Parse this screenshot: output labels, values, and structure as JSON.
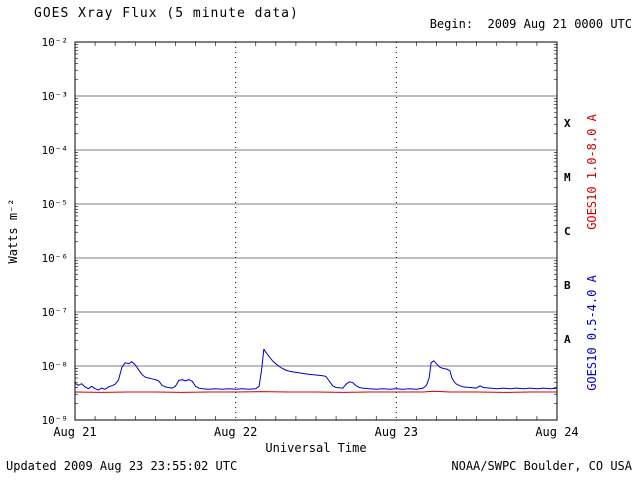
{
  "header": {
    "title": "GOES Xray Flux (5 minute data)",
    "begin": "Begin:  2009 Aug 21 0000 UTC"
  },
  "footer": {
    "updated": "Updated 2009 Aug 23 23:55:02 UTC",
    "credit": "NOAA/SWPC Boulder, CO USA"
  },
  "axes": {
    "ylabel": "Watts m⁻²",
    "xlabel": "Universal Time"
  },
  "right_labels": {
    "long_channel": "GOES10 1.0-8.0 A",
    "short_channel": "GOES10 0.5-4.0 A"
  },
  "colors": {
    "long_channel": "#d00000",
    "short_channel": "#0000c8",
    "axis": "#000000",
    "background": "#ffffff"
  },
  "chart_data": {
    "type": "line",
    "title": "GOES Xray Flux (5 minute data)",
    "xlabel": "Universal Time",
    "ylabel": "Watts m⁻²",
    "y_scale": "log",
    "y_log_range": [
      -2,
      -9
    ],
    "y_ticks": [
      {
        "exp": -2,
        "label": "10⁻²"
      },
      {
        "exp": -3,
        "label": "10⁻³"
      },
      {
        "exp": -4,
        "label": "10⁻⁴"
      },
      {
        "exp": -5,
        "label": "10⁻⁵"
      },
      {
        "exp": -6,
        "label": "10⁻⁶"
      },
      {
        "exp": -7,
        "label": "10⁻⁷"
      },
      {
        "exp": -8,
        "label": "10⁻⁸"
      },
      {
        "exp": -9,
        "label": "10⁻⁹"
      }
    ],
    "flare_classes": [
      {
        "label": "X",
        "log_center": -3.5
      },
      {
        "label": "M",
        "log_center": -4.5
      },
      {
        "label": "C",
        "log_center": -5.5
      },
      {
        "label": "B",
        "log_center": -6.5
      },
      {
        "label": "A",
        "log_center": -7.5
      }
    ],
    "x_start": "2009 Aug 21 0000 UTC",
    "x_range_hours": [
      0,
      72
    ],
    "x_minor_step": 3,
    "x_tick_hours": [
      0,
      24,
      48,
      72
    ],
    "x_tick_labels": [
      "Aug 21",
      "Aug 22",
      "Aug 23",
      "Aug 24"
    ],
    "series": [
      {
        "id": "long",
        "name": "GOES10 1.0-8.0 A",
        "color": "#d00000",
        "points": [
          [
            0,
            3.3e-09
          ],
          [
            4,
            3.25e-09
          ],
          [
            8,
            3.3e-09
          ],
          [
            12,
            3.3e-09
          ],
          [
            16,
            3.25e-09
          ],
          [
            20,
            3.3e-09
          ],
          [
            24,
            3.3e-09
          ],
          [
            28,
            3.35e-09
          ],
          [
            32,
            3.3e-09
          ],
          [
            36,
            3.3e-09
          ],
          [
            40,
            3.25e-09
          ],
          [
            44,
            3.3e-09
          ],
          [
            48,
            3.3e-09
          ],
          [
            52,
            3.3e-09
          ],
          [
            53.5,
            3.4e-09
          ],
          [
            56,
            3.3e-09
          ],
          [
            60,
            3.3e-09
          ],
          [
            64,
            3.25e-09
          ],
          [
            68,
            3.3e-09
          ],
          [
            72,
            3.3e-09
          ]
        ]
      },
      {
        "id": "short",
        "name": "GOES10 0.5-4.0 A",
        "color": "#0000c8",
        "points": [
          [
            0,
            4.8e-09
          ],
          [
            0.5,
            4.4e-09
          ],
          [
            1,
            4.7e-09
          ],
          [
            1.5,
            4.1e-09
          ],
          [
            2,
            3.8e-09
          ],
          [
            2.5,
            4.2e-09
          ],
          [
            3,
            3.8e-09
          ],
          [
            3.5,
            3.6e-09
          ],
          [
            4,
            3.9e-09
          ],
          [
            4.5,
            3.7e-09
          ],
          [
            5,
            4.1e-09
          ],
          [
            5.5,
            4.3e-09
          ],
          [
            6,
            4.6e-09
          ],
          [
            6.5,
            5.5e-09
          ],
          [
            7,
            9.5e-09
          ],
          [
            7.5,
            1.15e-08
          ],
          [
            8,
            1.1e-08
          ],
          [
            8.5,
            1.2e-08
          ],
          [
            9,
            1.05e-08
          ],
          [
            9.5,
            8.5e-09
          ],
          [
            10,
            7e-09
          ],
          [
            10.5,
            6.2e-09
          ],
          [
            11,
            6e-09
          ],
          [
            11.5,
            5.8e-09
          ],
          [
            12,
            5.6e-09
          ],
          [
            12.5,
            5.3e-09
          ],
          [
            13,
            4.4e-09
          ],
          [
            13.5,
            4.1e-09
          ],
          [
            14,
            4e-09
          ],
          [
            14.5,
            3.9e-09
          ],
          [
            15,
            4.2e-09
          ],
          [
            15.5,
            5.4e-09
          ],
          [
            16,
            5.6e-09
          ],
          [
            16.5,
            5.3e-09
          ],
          [
            17,
            5.6e-09
          ],
          [
            17.5,
            5.2e-09
          ],
          [
            18,
            4.2e-09
          ],
          [
            18.5,
            3.9e-09
          ],
          [
            19,
            3.8e-09
          ],
          [
            20,
            3.7e-09
          ],
          [
            21,
            3.8e-09
          ],
          [
            22,
            3.7e-09
          ],
          [
            23,
            3.8e-09
          ],
          [
            24,
            3.7e-09
          ],
          [
            25,
            3.8e-09
          ],
          [
            26,
            3.7e-09
          ],
          [
            27,
            3.8e-09
          ],
          [
            27.5,
            4.2e-09
          ],
          [
            27.9,
            9e-09
          ],
          [
            28.2,
            2.05e-08
          ],
          [
            28.5,
            1.8e-08
          ],
          [
            29,
            1.5e-08
          ],
          [
            29.5,
            1.25e-08
          ],
          [
            30,
            1.1e-08
          ],
          [
            30.5,
            9.8e-09
          ],
          [
            31,
            9e-09
          ],
          [
            31.5,
            8.4e-09
          ],
          [
            32,
            8e-09
          ],
          [
            33,
            7.6e-09
          ],
          [
            34,
            7.3e-09
          ],
          [
            35,
            7e-09
          ],
          [
            36,
            6.8e-09
          ],
          [
            37,
            6.6e-09
          ],
          [
            37.5,
            6.4e-09
          ],
          [
            38,
            5.2e-09
          ],
          [
            38.5,
            4.3e-09
          ],
          [
            39,
            4e-09
          ],
          [
            40,
            3.9e-09
          ],
          [
            40.5,
            4.6e-09
          ],
          [
            41,
            5.1e-09
          ],
          [
            41.5,
            4.9e-09
          ],
          [
            42,
            4.3e-09
          ],
          [
            42.5,
            4e-09
          ],
          [
            43,
            3.9e-09
          ],
          [
            44,
            3.8e-09
          ],
          [
            45,
            3.7e-09
          ],
          [
            46,
            3.8e-09
          ],
          [
            47,
            3.7e-09
          ],
          [
            48,
            3.8e-09
          ],
          [
            49,
            3.7e-09
          ],
          [
            50,
            3.8e-09
          ],
          [
            51,
            3.7e-09
          ],
          [
            52,
            3.9e-09
          ],
          [
            52.5,
            4.4e-09
          ],
          [
            52.9,
            6e-09
          ],
          [
            53.2,
            1.15e-08
          ],
          [
            53.6,
            1.25e-08
          ],
          [
            54,
            1.1e-08
          ],
          [
            54.5,
            9.5e-09
          ],
          [
            55,
            9e-09
          ],
          [
            55.5,
            8.8e-09
          ],
          [
            56,
            8.2e-09
          ],
          [
            56.3,
            6e-09
          ],
          [
            56.7,
            5e-09
          ],
          [
            57,
            4.6e-09
          ],
          [
            57.5,
            4.3e-09
          ],
          [
            58,
            4.1e-09
          ],
          [
            59,
            4e-09
          ],
          [
            60,
            3.9e-09
          ],
          [
            60.5,
            4.3e-09
          ],
          [
            61,
            4e-09
          ],
          [
            62,
            3.9e-09
          ],
          [
            63,
            3.8e-09
          ],
          [
            64,
            3.9e-09
          ],
          [
            65,
            3.8e-09
          ],
          [
            66,
            3.9e-09
          ],
          [
            67,
            3.8e-09
          ],
          [
            68,
            3.9e-09
          ],
          [
            69,
            3.8e-09
          ],
          [
            70,
            3.9e-09
          ],
          [
            71,
            3.8e-09
          ],
          [
            72,
            3.9e-09
          ]
        ]
      }
    ]
  }
}
